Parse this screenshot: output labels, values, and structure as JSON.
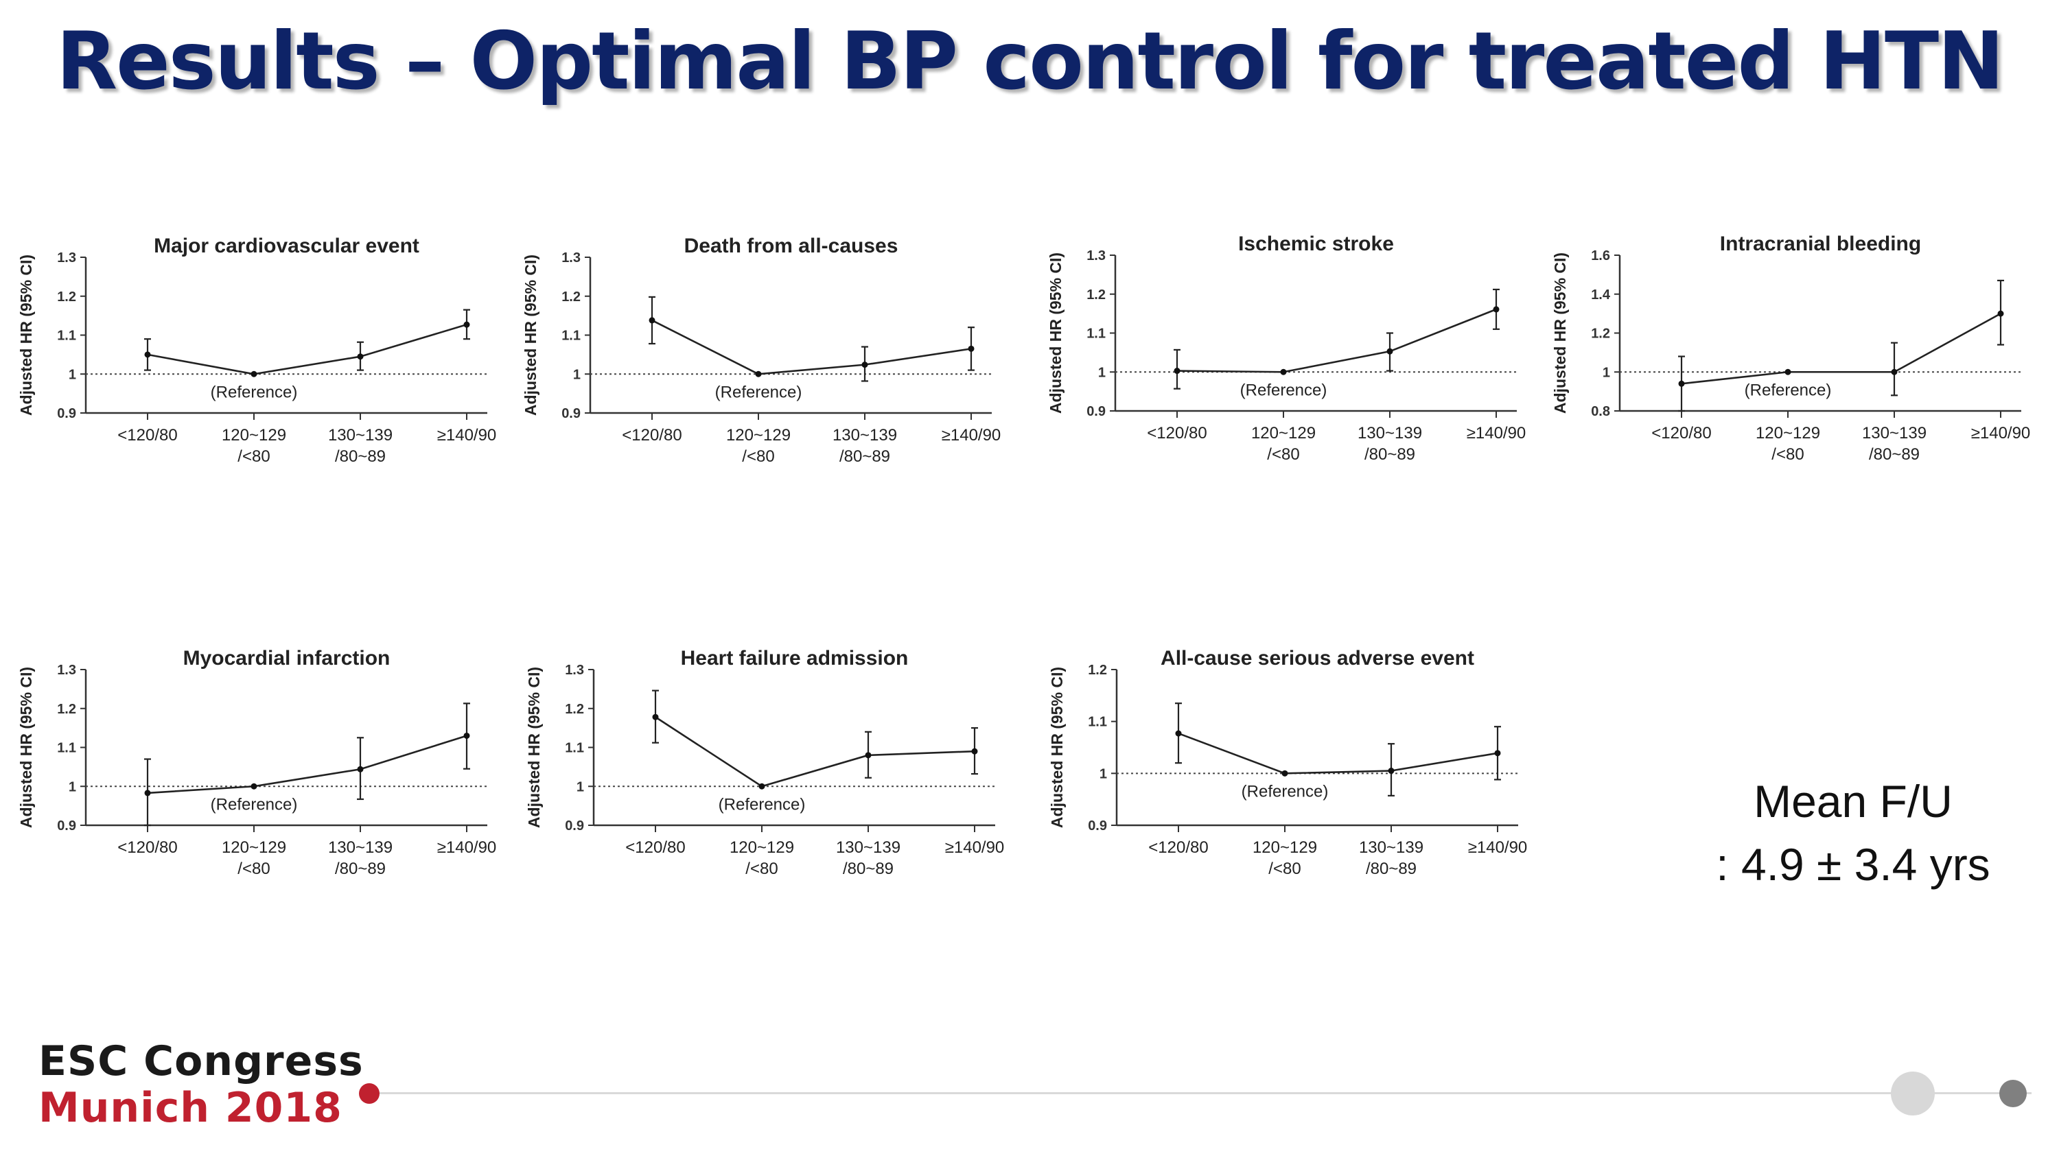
{
  "slide": {
    "title": "Results – Optimal BP control for treated HTN",
    "followup_line1": "Mean F/U",
    "followup_line2": ": 4.9 ± 3.4 yrs",
    "congress_line1": "ESC Congress",
    "congress_line2": "Munich 2018",
    "colors": {
      "title": "#0e2367",
      "congress_red": "#c0212f",
      "congress_dark": "#1a1a1a"
    }
  },
  "chart_data": [
    {
      "type": "line",
      "title": "Major cardiovascular event",
      "ylabel": "Adjusted HR (95% CI)",
      "xlabel": "",
      "categories": [
        [
          "<120/80"
        ],
        [
          "120~129",
          "/<80"
        ],
        [
          "130~139",
          "/80~89"
        ],
        [
          "≥140/90"
        ]
      ],
      "values": [
        1.05,
        1.0,
        1.045,
        1.127
      ],
      "ci_lower": [
        1.01,
        null,
        1.01,
        1.09
      ],
      "ci_upper": [
        1.09,
        null,
        1.082,
        1.165
      ],
      "ylim": [
        0.9,
        1.3
      ],
      "yticks": [
        0.9,
        1,
        1.1,
        1.2,
        1.3
      ],
      "ytick_labels": [
        "0.9",
        "1",
        "1.1",
        "1.2",
        "1.3"
      ],
      "reference_line": 1,
      "annotation": "(Reference)",
      "grid": false
    },
    {
      "type": "line",
      "title": "Death from all-causes",
      "ylabel": "Adjusted HR (95% CI)",
      "xlabel": "",
      "categories": [
        [
          "<120/80"
        ],
        [
          "120~129",
          "/<80"
        ],
        [
          "130~139",
          "/80~89"
        ],
        [
          "≥140/90"
        ]
      ],
      "values": [
        1.138,
        1.0,
        1.024,
        1.065
      ],
      "ci_lower": [
        1.078,
        null,
        0.982,
        1.01
      ],
      "ci_upper": [
        1.198,
        null,
        1.07,
        1.12
      ],
      "ylim": [
        0.9,
        1.3
      ],
      "yticks": [
        0.9,
        1,
        1.1,
        1.2,
        1.3
      ],
      "ytick_labels": [
        "0.9",
        "1",
        "1.1",
        "1.2",
        "1.3"
      ],
      "reference_line": 1,
      "annotation": "(Reference)",
      "grid": false
    },
    {
      "type": "line",
      "title": "Ischemic stroke",
      "ylabel": "Adjusted HR (95% CI)",
      "xlabel": "",
      "categories": [
        [
          "<120/80"
        ],
        [
          "120~129",
          "/<80"
        ],
        [
          "130~139",
          "/80~89"
        ],
        [
          "≥140/90"
        ]
      ],
      "values": [
        1.003,
        1.0,
        1.053,
        1.161
      ],
      "ci_lower": [
        0.957,
        null,
        1.003,
        1.11
      ],
      "ci_upper": [
        1.057,
        null,
        1.1,
        1.212
      ],
      "ylim": [
        0.9,
        1.3
      ],
      "yticks": [
        0.9,
        1,
        1.1,
        1.2,
        1.3
      ],
      "ytick_labels": [
        "0.9",
        "1",
        "1.1",
        "1.2",
        "1.3"
      ],
      "reference_line": 1,
      "annotation": "(Reference)",
      "grid": false
    },
    {
      "type": "line",
      "title": "Intracranial bleeding",
      "ylabel": "Adjusted HR (95% CI)",
      "xlabel": "",
      "categories": [
        [
          "<120/80"
        ],
        [
          "120~129",
          "/<80"
        ],
        [
          "130~139",
          "/80~89"
        ],
        [
          "≥140/90"
        ]
      ],
      "values": [
        0.94,
        1.0,
        1.0,
        1.3
      ],
      "ci_lower": [
        0.8,
        null,
        0.88,
        1.14
      ],
      "ci_upper": [
        1.08,
        null,
        1.15,
        1.47
      ],
      "ylim": [
        0.8,
        1.6
      ],
      "yticks": [
        0.8,
        1,
        1.2,
        1.4,
        1.6
      ],
      "ytick_labels": [
        "0.8",
        "1",
        "1.2",
        "1.4",
        "1.6"
      ],
      "reference_line": 1,
      "annotation": "(Reference)",
      "grid": false
    },
    {
      "type": "line",
      "title": "Myocardial infarction",
      "ylabel": "Adjusted HR (95% CI)",
      "xlabel": "",
      "categories": [
        [
          "<120/80"
        ],
        [
          "120~129",
          "/<80"
        ],
        [
          "130~139",
          "/80~89"
        ],
        [
          "≥140/90"
        ]
      ],
      "values": [
        0.983,
        1.0,
        1.044,
        1.13
      ],
      "ci_lower": [
        0.9,
        null,
        0.967,
        1.045
      ],
      "ci_upper": [
        1.07,
        null,
        1.125,
        1.213
      ],
      "ylim": [
        0.9,
        1.3
      ],
      "yticks": [
        0.9,
        1,
        1.1,
        1.2,
        1.3
      ],
      "ytick_labels": [
        "0.9",
        "1",
        "1.1",
        "1.2",
        "1.3"
      ],
      "reference_line": 1,
      "annotation": "(Reference)",
      "grid": false
    },
    {
      "type": "line",
      "title": "Heart failure admission",
      "ylabel": "Adjusted HR (95% CI)",
      "xlabel": "",
      "categories": [
        [
          "<120/80"
        ],
        [
          "120~129",
          "/<80"
        ],
        [
          "130~139",
          "/80~89"
        ],
        [
          "≥140/90"
        ]
      ],
      "values": [
        1.178,
        1.0,
        1.08,
        1.09
      ],
      "ci_lower": [
        1.112,
        null,
        1.022,
        1.032
      ],
      "ci_upper": [
        1.246,
        null,
        1.14,
        1.15
      ],
      "ylim": [
        0.9,
        1.3
      ],
      "yticks": [
        0.9,
        1,
        1.1,
        1.2,
        1.3
      ],
      "ytick_labels": [
        "0.9",
        "1",
        "1.1",
        "1.2",
        "1.3"
      ],
      "reference_line": 1,
      "annotation": "(Reference)",
      "grid": false
    },
    {
      "type": "line",
      "title": "All-cause serious adverse event",
      "ylabel": "Adjusted HR (95% CI)",
      "xlabel": "",
      "categories": [
        [
          "<120/80"
        ],
        [
          "120~129",
          "/<80"
        ],
        [
          "130~139",
          "/80~89"
        ],
        [
          "≥140/90"
        ]
      ],
      "values": [
        1.077,
        1.0,
        1.005,
        1.039
      ],
      "ci_lower": [
        1.02,
        null,
        0.957,
        0.988
      ],
      "ci_upper": [
        1.135,
        null,
        1.057,
        1.09
      ],
      "ylim": [
        0.9,
        1.2
      ],
      "yticks": [
        0.9,
        1,
        1.1,
        1.2
      ],
      "ytick_labels": [
        "0.9",
        "1",
        "1.1",
        "1.2"
      ],
      "reference_line": 1,
      "annotation": "(Reference)",
      "grid": false
    }
  ]
}
